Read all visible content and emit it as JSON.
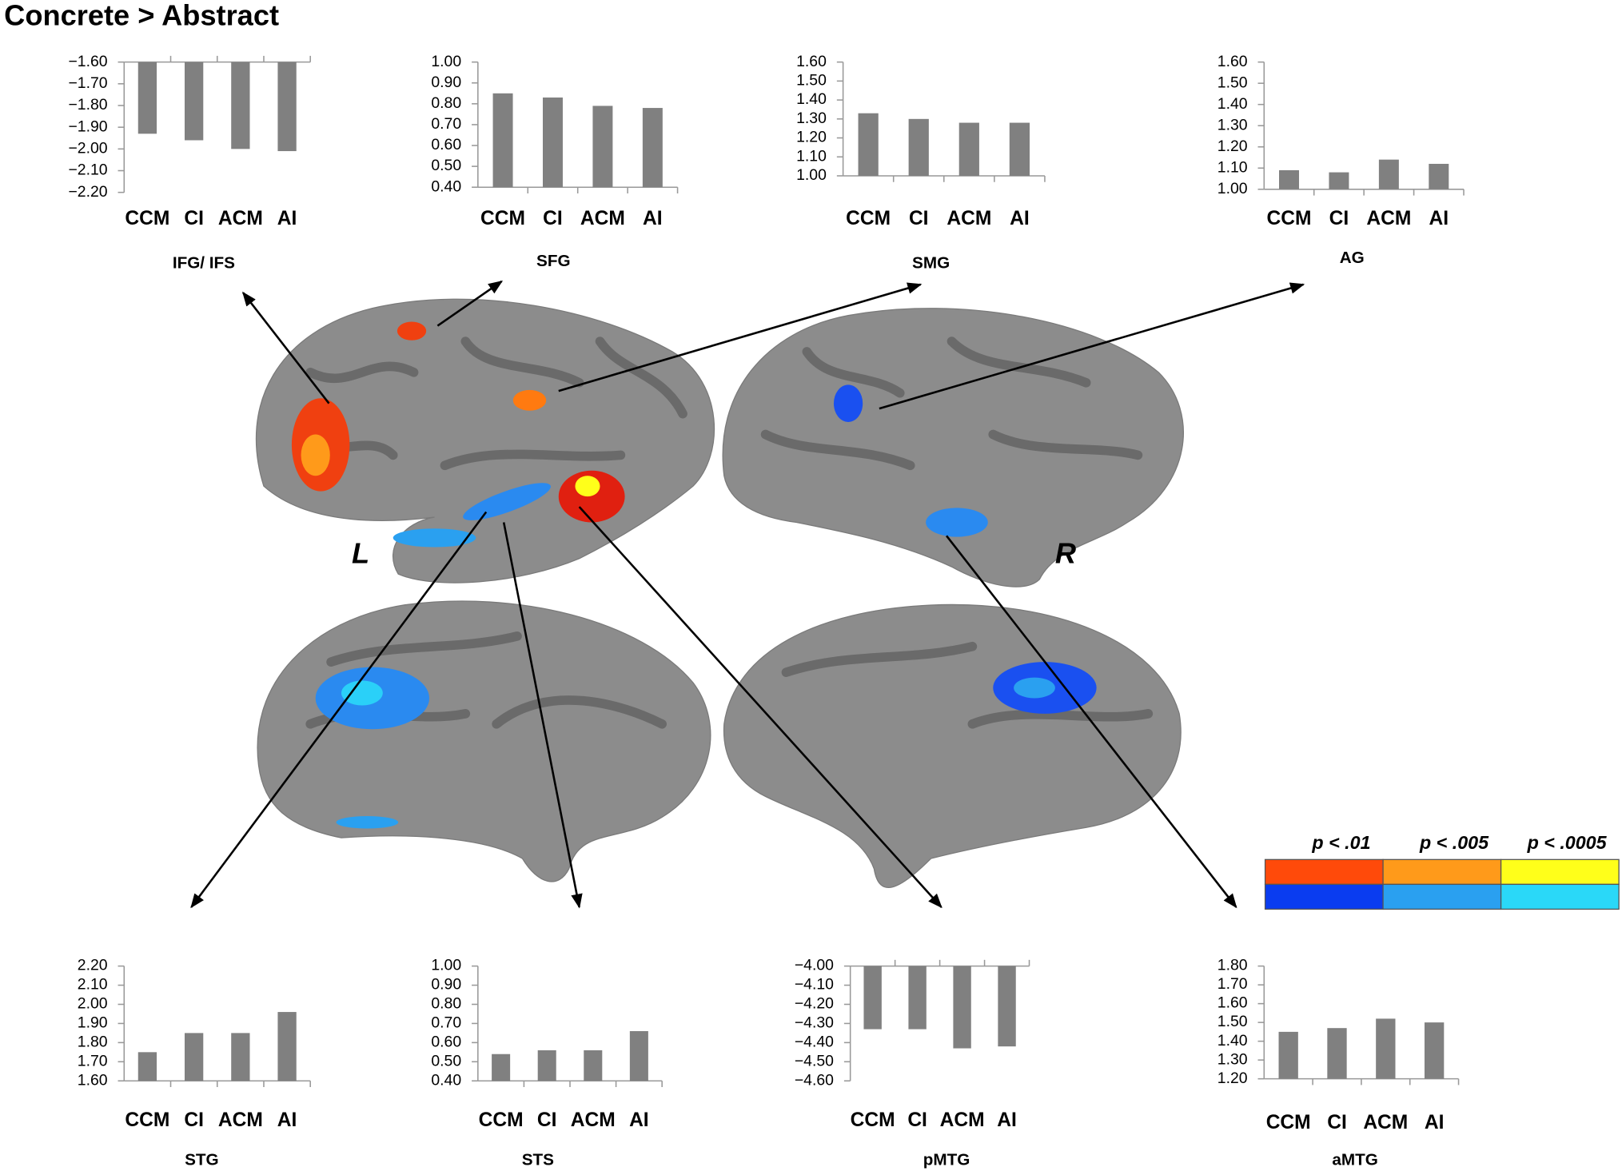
{
  "figure_title": "Concrete > Abstract",
  "hemisphere_labels": [
    "L",
    "R"
  ],
  "threshold_legend": [
    {
      "label": "p < .01",
      "colors": [
        "#ff4a0a",
        "#0a3cf0"
      ]
    },
    {
      "label": "p < .005",
      "colors": [
        "#ff9a1a",
        "#2aa0f0"
      ]
    },
    {
      "label": "p < .0005",
      "colors": [
        "#ffff1a",
        "#2ad8f8"
      ]
    }
  ],
  "chart_data": [
    {
      "type": "bar",
      "title": "IFG/ IFS",
      "categories": [
        "CCM",
        "CI",
        "ACM",
        "AI"
      ],
      "values": [
        -1.93,
        -1.96,
        -2.0,
        -2.01
      ],
      "color": "#808080",
      "ylim": [
        -2.2,
        -1.6
      ],
      "yticks": [
        {
          "value": -2.2,
          "label": "−2.20"
        },
        {
          "value": -2.1,
          "label": "−2.10"
        },
        {
          "value": -2.0,
          "label": "−2.00"
        },
        {
          "value": -1.9,
          "label": "−1.90"
        },
        {
          "value": -1.8,
          "label": "−1.80"
        },
        {
          "value": -1.7,
          "label": "−1.70"
        },
        {
          "value": -1.6,
          "label": "−1.60"
        }
      ]
    },
    {
      "type": "bar",
      "title": "SFG",
      "categories": [
        "CCM",
        "CI",
        "ACM",
        "AI"
      ],
      "values": [
        0.85,
        0.83,
        0.79,
        0.78
      ],
      "color": "#808080",
      "ylim": [
        0.4,
        1.0
      ],
      "yticks": [
        {
          "value": 0.4,
          "label": "0.40"
        },
        {
          "value": 0.5,
          "label": "0.50"
        },
        {
          "value": 0.6,
          "label": "0.60"
        },
        {
          "value": 0.7,
          "label": "0.70"
        },
        {
          "value": 0.8,
          "label": "0.80"
        },
        {
          "value": 0.9,
          "label": "0.90"
        },
        {
          "value": 1.0,
          "label": "1.00"
        }
      ]
    },
    {
      "type": "bar",
      "title": "SMG",
      "categories": [
        "CCM",
        "CI",
        "ACM",
        "AI"
      ],
      "values": [
        1.33,
        1.3,
        1.28,
        1.28
      ],
      "color": "#808080",
      "ylim": [
        1.0,
        1.6
      ],
      "yticks": [
        {
          "value": 1.0,
          "label": "1.00"
        },
        {
          "value": 1.1,
          "label": "1.10"
        },
        {
          "value": 1.2,
          "label": "1.20"
        },
        {
          "value": 1.3,
          "label": "1.30"
        },
        {
          "value": 1.4,
          "label": "1.40"
        },
        {
          "value": 1.5,
          "label": "1.50"
        },
        {
          "value": 1.6,
          "label": "1.60"
        }
      ]
    },
    {
      "type": "bar",
      "title": "AG",
      "categories": [
        "CCM",
        "CI",
        "ACM",
        "AI"
      ],
      "values": [
        1.09,
        1.08,
        1.14,
        1.12
      ],
      "color": "#808080",
      "ylim": [
        1.0,
        1.6
      ],
      "yticks": [
        {
          "value": 1.0,
          "label": "1.00"
        },
        {
          "value": 1.1,
          "label": "1.10"
        },
        {
          "value": 1.2,
          "label": "1.20"
        },
        {
          "value": 1.3,
          "label": "1.30"
        },
        {
          "value": 1.4,
          "label": "1.40"
        },
        {
          "value": 1.5,
          "label": "1.50"
        },
        {
          "value": 1.6,
          "label": "1.60"
        }
      ]
    },
    {
      "type": "bar",
      "title": "STG",
      "categories": [
        "CCM",
        "CI",
        "ACM",
        "AI"
      ],
      "values": [
        1.75,
        1.85,
        1.85,
        1.96
      ],
      "color": "#808080",
      "ylim": [
        1.6,
        2.2
      ],
      "yticks": [
        {
          "value": 1.6,
          "label": "1.60"
        },
        {
          "value": 1.7,
          "label": "1.70"
        },
        {
          "value": 1.8,
          "label": "1.80"
        },
        {
          "value": 1.9,
          "label": "1.90"
        },
        {
          "value": 2.0,
          "label": "2.00"
        },
        {
          "value": 2.1,
          "label": "2.10"
        },
        {
          "value": 2.2,
          "label": "2.20"
        }
      ]
    },
    {
      "type": "bar",
      "title": "STS",
      "categories": [
        "CCM",
        "CI",
        "ACM",
        "AI"
      ],
      "values": [
        0.54,
        0.56,
        0.56,
        0.66
      ],
      "color": "#808080",
      "ylim": [
        0.4,
        1.0
      ],
      "yticks": [
        {
          "value": 0.4,
          "label": "0.40"
        },
        {
          "value": 0.5,
          "label": "0.50"
        },
        {
          "value": 0.6,
          "label": "0.60"
        },
        {
          "value": 0.7,
          "label": "0.70"
        },
        {
          "value": 0.8,
          "label": "0.80"
        },
        {
          "value": 0.9,
          "label": "0.90"
        },
        {
          "value": 1.0,
          "label": "1.00"
        }
      ]
    },
    {
      "type": "bar",
      "title": "pMTG",
      "categories": [
        "CCM",
        "CI",
        "ACM",
        "AI"
      ],
      "values": [
        -4.33,
        -4.33,
        -4.43,
        -4.42
      ],
      "color": "#808080",
      "ylim": [
        -4.6,
        -4.0
      ],
      "yticks": [
        {
          "value": -4.6,
          "label": "−4.60"
        },
        {
          "value": -4.5,
          "label": "−4.50"
        },
        {
          "value": -4.4,
          "label": "−4.40"
        },
        {
          "value": -4.3,
          "label": "−4.30"
        },
        {
          "value": -4.2,
          "label": "−4.20"
        },
        {
          "value": -4.1,
          "label": "−4.10"
        },
        {
          "value": -4.0,
          "label": "−4.00"
        }
      ]
    },
    {
      "type": "bar",
      "title": "aMTG",
      "categories": [
        "CCM",
        "CI",
        "ACM",
        "AI"
      ],
      "values": [
        1.45,
        1.47,
        1.52,
        1.5
      ],
      "color": "#808080",
      "ylim": [
        1.2,
        1.8
      ],
      "yticks": [
        {
          "value": 1.2,
          "label": "1.20"
        },
        {
          "value": 1.3,
          "label": "1.30"
        },
        {
          "value": 1.4,
          "label": "1.40"
        },
        {
          "value": 1.5,
          "label": "1.50"
        },
        {
          "value": 1.6,
          "label": "1.60"
        },
        {
          "value": 1.7,
          "label": "1.70"
        },
        {
          "value": 1.8,
          "label": "1.80"
        }
      ]
    }
  ]
}
